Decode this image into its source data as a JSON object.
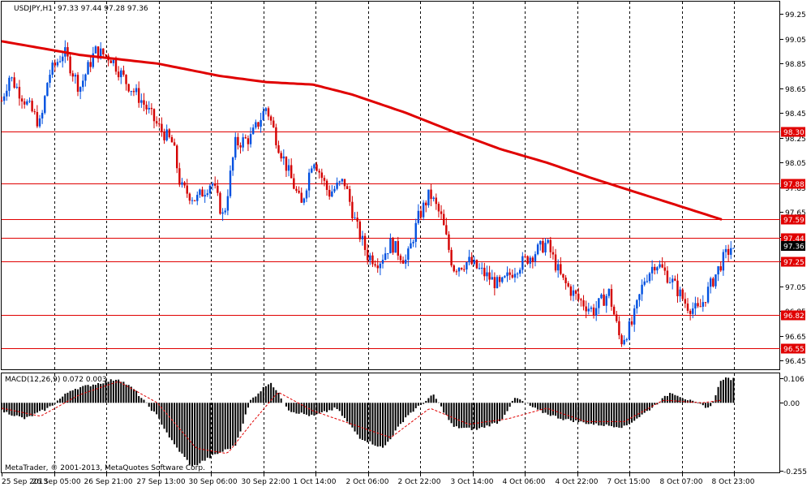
{
  "header": {
    "symbol": "USDJPY,H1",
    "ohlc": "97.33 97.44 97.28 97.36"
  },
  "macd_panel": {
    "title": "MACD(12,26,9) 0.072 0.003",
    "ticks": [
      "0.106",
      "0.00",
      "-0.255"
    ]
  },
  "footer": {
    "copyright": "MetaTrader, © 2001-2013, MetaQuotes Software Corp."
  },
  "chart_data": {
    "type": "candlestick",
    "symbol": "USDJPY",
    "timeframe": "H1",
    "current_price": 97.36,
    "y_axis": {
      "ylim": [
        96.38,
        99.35
      ],
      "ticks": [
        "99.25",
        "99.05",
        "98.85",
        "98.65",
        "98.45",
        "98.25",
        "98.05",
        "97.85",
        "97.65",
        "97.45",
        "97.25",
        "97.05",
        "96.85",
        "96.65",
        "96.45"
      ]
    },
    "x_axis": {
      "ticks": [
        "25 Sep 2013",
        "26 Sep 05:00",
        "26 Sep 21:00",
        "27 Sep 13:00",
        "30 Sep 06:00",
        "30 Sep 22:00",
        "1 Oct 14:00",
        "2 Oct 06:00",
        "2 Oct 22:00",
        "3 Oct 14:00",
        "4 Oct 06:00",
        "4 Oct 22:00",
        "7 Oct 15:00",
        "8 Oct 07:00",
        "8 Oct 23:00"
      ]
    },
    "horizontal_levels": [
      {
        "value": 98.3,
        "label": "98.30"
      },
      {
        "value": 97.88,
        "label": "97.88"
      },
      {
        "value": 97.59,
        "label": "97.59"
      },
      {
        "value": 97.44,
        "label": "97.44"
      },
      {
        "value": 97.25,
        "label": "97.25"
      },
      {
        "value": 96.82,
        "label": "96.82"
      },
      {
        "value": 96.55,
        "label": "96.55"
      }
    ],
    "price_path": [
      {
        "x": 0.0,
        "y": 98.55
      },
      {
        "x": 0.01,
        "y": 98.75
      },
      {
        "x": 0.03,
        "y": 98.55
      },
      {
        "x": 0.05,
        "y": 98.35
      },
      {
        "x": 0.06,
        "y": 98.75
      },
      {
        "x": 0.08,
        "y": 98.95
      },
      {
        "x": 0.1,
        "y": 98.65
      },
      {
        "x": 0.12,
        "y": 98.95
      },
      {
        "x": 0.14,
        "y": 98.9
      },
      {
        "x": 0.16,
        "y": 98.7
      },
      {
        "x": 0.18,
        "y": 98.55
      },
      {
        "x": 0.2,
        "y": 98.35
      },
      {
        "x": 0.22,
        "y": 98.2
      },
      {
        "x": 0.23,
        "y": 97.85
      },
      {
        "x": 0.25,
        "y": 97.75
      },
      {
        "x": 0.27,
        "y": 97.9
      },
      {
        "x": 0.285,
        "y": 97.6
      },
      {
        "x": 0.3,
        "y": 98.2
      },
      {
        "x": 0.32,
        "y": 98.25
      },
      {
        "x": 0.34,
        "y": 98.5
      },
      {
        "x": 0.355,
        "y": 98.2
      },
      {
        "x": 0.37,
        "y": 97.95
      },
      {
        "x": 0.385,
        "y": 97.7
      },
      {
        "x": 0.4,
        "y": 98.1
      },
      {
        "x": 0.42,
        "y": 97.8
      },
      {
        "x": 0.44,
        "y": 97.9
      },
      {
        "x": 0.455,
        "y": 97.55
      },
      {
        "x": 0.47,
        "y": 97.3
      },
      {
        "x": 0.485,
        "y": 97.25
      },
      {
        "x": 0.5,
        "y": 97.4
      },
      {
        "x": 0.52,
        "y": 97.25
      },
      {
        "x": 0.535,
        "y": 97.6
      },
      {
        "x": 0.55,
        "y": 97.8
      },
      {
        "x": 0.565,
        "y": 97.6
      },
      {
        "x": 0.58,
        "y": 97.2
      },
      {
        "x": 0.6,
        "y": 97.25
      },
      {
        "x": 0.62,
        "y": 97.15
      },
      {
        "x": 0.64,
        "y": 97.05
      },
      {
        "x": 0.66,
        "y": 97.2
      },
      {
        "x": 0.68,
        "y": 97.3
      },
      {
        "x": 0.7,
        "y": 97.4
      },
      {
        "x": 0.72,
        "y": 97.1
      },
      {
        "x": 0.74,
        "y": 96.95
      },
      {
        "x": 0.76,
        "y": 96.85
      },
      {
        "x": 0.78,
        "y": 97.0
      },
      {
        "x": 0.795,
        "y": 96.6
      },
      {
        "x": 0.81,
        "y": 96.75
      },
      {
        "x": 0.825,
        "y": 97.1
      },
      {
        "x": 0.84,
        "y": 97.25
      },
      {
        "x": 0.86,
        "y": 97.1
      },
      {
        "x": 0.88,
        "y": 96.9
      },
      {
        "x": 0.895,
        "y": 96.85
      },
      {
        "x": 0.91,
        "y": 97.05
      },
      {
        "x": 0.925,
        "y": 97.25
      },
      {
        "x": 0.94,
        "y": 97.4
      }
    ],
    "moving_average": [
      {
        "x": 0.0,
        "y": 99.03
      },
      {
        "x": 0.1,
        "y": 98.92
      },
      {
        "x": 0.2,
        "y": 98.85
      },
      {
        "x": 0.28,
        "y": 98.75
      },
      {
        "x": 0.34,
        "y": 98.7
      },
      {
        "x": 0.4,
        "y": 98.68
      },
      {
        "x": 0.45,
        "y": 98.6
      },
      {
        "x": 0.52,
        "y": 98.45
      },
      {
        "x": 0.58,
        "y": 98.3
      },
      {
        "x": 0.64,
        "y": 98.16
      },
      {
        "x": 0.7,
        "y": 98.05
      },
      {
        "x": 0.76,
        "y": 97.92
      },
      {
        "x": 0.82,
        "y": 97.8
      },
      {
        "x": 0.88,
        "y": 97.68
      },
      {
        "x": 0.925,
        "y": 97.59
      }
    ],
    "macd": {
      "ylim": [
        -0.26,
        0.11
      ],
      "histogram_path": [
        {
          "x": 0.0,
          "y": -0.03
        },
        {
          "x": 0.03,
          "y": -0.06
        },
        {
          "x": 0.06,
          "y": -0.02
        },
        {
          "x": 0.09,
          "y": 0.05
        },
        {
          "x": 0.12,
          "y": 0.07
        },
        {
          "x": 0.15,
          "y": 0.09
        },
        {
          "x": 0.17,
          "y": 0.05
        },
        {
          "x": 0.2,
          "y": -0.05
        },
        {
          "x": 0.22,
          "y": -0.15
        },
        {
          "x": 0.245,
          "y": -0.24
        },
        {
          "x": 0.27,
          "y": -0.2
        },
        {
          "x": 0.3,
          "y": -0.16
        },
        {
          "x": 0.32,
          "y": 0.01
        },
        {
          "x": 0.345,
          "y": 0.08
        },
        {
          "x": 0.37,
          "y": -0.03
        },
        {
          "x": 0.4,
          "y": -0.05
        },
        {
          "x": 0.43,
          "y": -0.02
        },
        {
          "x": 0.46,
          "y": -0.13
        },
        {
          "x": 0.49,
          "y": -0.17
        },
        {
          "x": 0.52,
          "y": -0.05
        },
        {
          "x": 0.555,
          "y": 0.03
        },
        {
          "x": 0.58,
          "y": -0.09
        },
        {
          "x": 0.61,
          "y": -0.1
        },
        {
          "x": 0.64,
          "y": -0.07
        },
        {
          "x": 0.66,
          "y": 0.02
        },
        {
          "x": 0.69,
          "y": -0.03
        },
        {
          "x": 0.72,
          "y": -0.06
        },
        {
          "x": 0.76,
          "y": -0.08
        },
        {
          "x": 0.8,
          "y": -0.09
        },
        {
          "x": 0.83,
          "y": -0.03
        },
        {
          "x": 0.86,
          "y": 0.04
        },
        {
          "x": 0.89,
          "y": 0.0
        },
        {
          "x": 0.91,
          "y": -0.02
        },
        {
          "x": 0.925,
          "y": 0.09
        }
      ],
      "signal_path": [
        {
          "x": 0.0,
          "y": -0.02
        },
        {
          "x": 0.05,
          "y": -0.05
        },
        {
          "x": 0.1,
          "y": 0.03
        },
        {
          "x": 0.15,
          "y": 0.08
        },
        {
          "x": 0.2,
          "y": 0.0
        },
        {
          "x": 0.25,
          "y": -0.17
        },
        {
          "x": 0.29,
          "y": -0.19
        },
        {
          "x": 0.32,
          "y": -0.08
        },
        {
          "x": 0.355,
          "y": 0.04
        },
        {
          "x": 0.4,
          "y": -0.03
        },
        {
          "x": 0.45,
          "y": -0.08
        },
        {
          "x": 0.5,
          "y": -0.13
        },
        {
          "x": 0.55,
          "y": -0.02
        },
        {
          "x": 0.6,
          "y": -0.08
        },
        {
          "x": 0.65,
          "y": -0.06
        },
        {
          "x": 0.7,
          "y": -0.02
        },
        {
          "x": 0.75,
          "y": -0.07
        },
        {
          "x": 0.8,
          "y": -0.07
        },
        {
          "x": 0.85,
          "y": 0.01
        },
        {
          "x": 0.9,
          "y": 0.0
        },
        {
          "x": 0.925,
          "y": 0.01
        }
      ]
    }
  }
}
